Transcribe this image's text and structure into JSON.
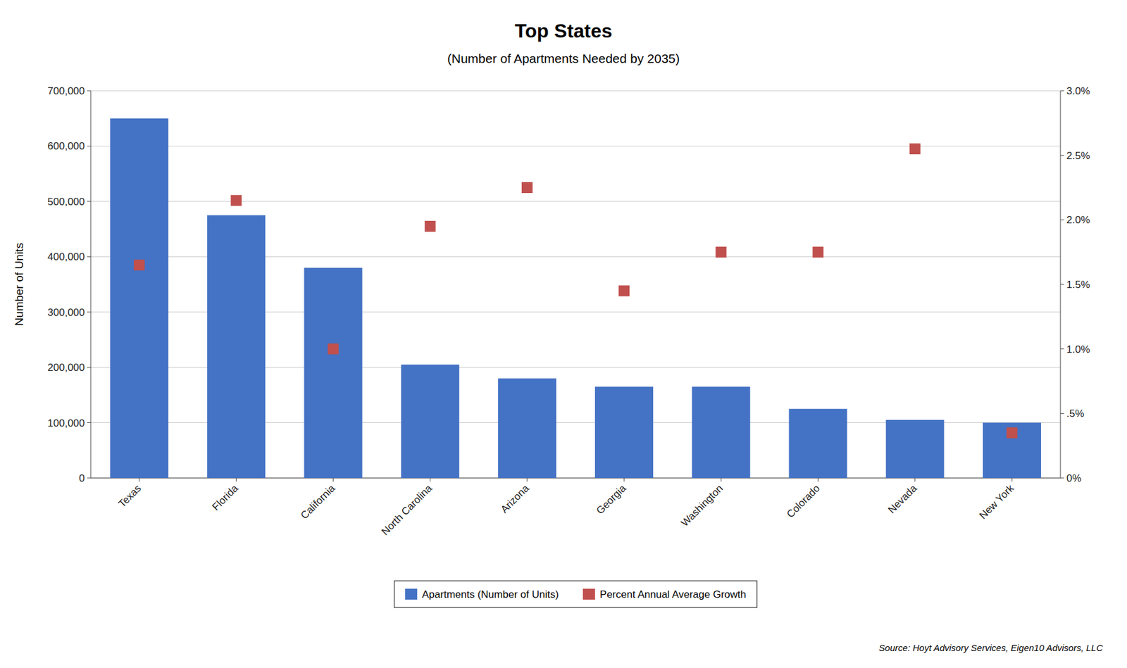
{
  "chart_data": {
    "type": "bar",
    "title": "Top States",
    "subtitle": "(Number of Apartments Needed by 2035)",
    "y_label": "Number of Units",
    "categories": [
      "Texas",
      "Florida",
      "California",
      "North Carolina",
      "Arizona",
      "Georgia",
      "Washington",
      "Colorado",
      "Nevada",
      "New York"
    ],
    "series": [
      {
        "name": "Apartments (Number of Units)",
        "type": "bar",
        "color": "#4472C4",
        "values": [
          650000,
          475000,
          380000,
          205000,
          180000,
          165000,
          165000,
          125000,
          105000,
          100000
        ]
      },
      {
        "name": "Percent Annual Average Growth",
        "type": "scatter",
        "marker": "square",
        "color": "#C0504D",
        "axis": "y2",
        "values": [
          1.65,
          2.15,
          1.0,
          1.95,
          2.25,
          1.45,
          1.75,
          1.75,
          2.55,
          0.35
        ]
      }
    ],
    "ylim": [
      0,
      700000
    ],
    "yticks": [
      0,
      {
        "value": 100000,
        "label": "100,000"
      },
      {
        "value": 200000,
        "label": "200,000"
      },
      {
        "value": 300000,
        "label": "300,000"
      },
      {
        "value": 400000,
        "label": "400,000"
      },
      {
        "value": 500000,
        "label": "500,000"
      },
      {
        "value": 600000,
        "label": "600,000"
      },
      {
        "value": 700000,
        "label": "700,000"
      }
    ],
    "y2lim": [
      0,
      3.0
    ],
    "y2ticks": [
      {
        "value": 0,
        "label": "0%"
      },
      {
        "value": 0.5,
        "label": ".5%"
      },
      {
        "value": 1.0,
        "label": "1.0%"
      },
      {
        "value": 1.5,
        "label": "1.5%"
      },
      {
        "value": 2.0,
        "label": "2.0%"
      },
      {
        "value": 2.5,
        "label": "2.5%"
      },
      {
        "value": 3.0,
        "label": "3.0%"
      }
    ],
    "grid": true,
    "legend": "bottom",
    "annotations": [
      "Source: Hoyt Advisory Services, Eigen10 Advisors, LLC"
    ]
  }
}
